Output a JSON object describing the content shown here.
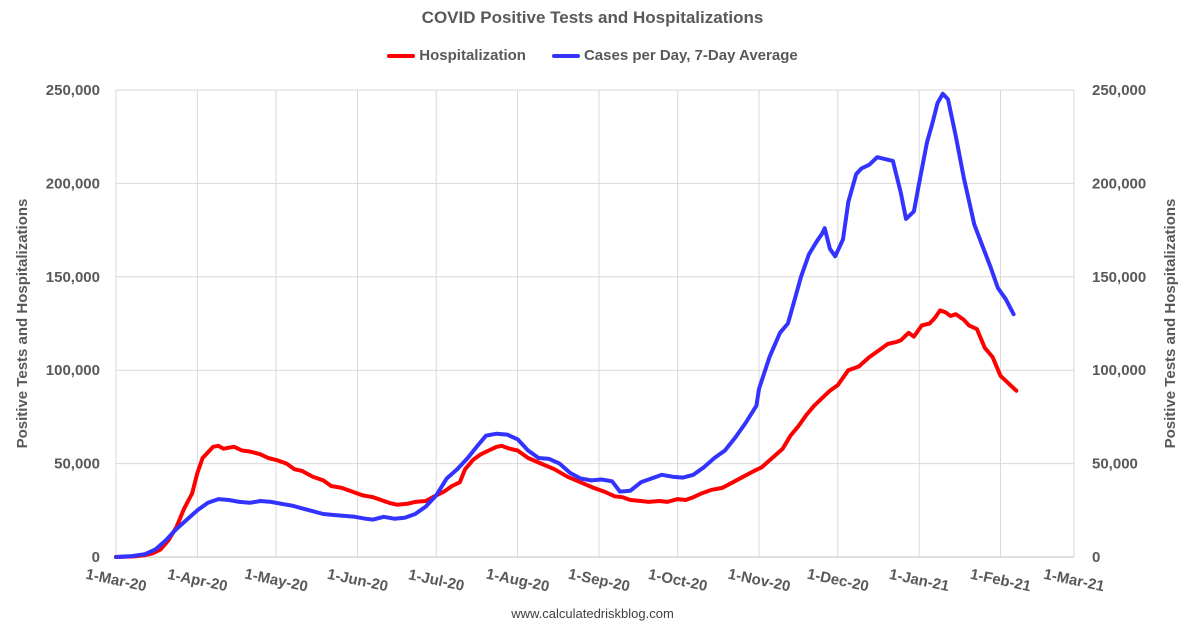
{
  "chart_data": {
    "type": "line",
    "title": "COVID Positive Tests and Hospitalizations",
    "source": "www.calculatedriskblog.com",
    "ylabel_left": "Positive Tests and Hospitalizations",
    "ylabel_right": "Positive Tests and Hospitalizations",
    "ylim": [
      0,
      250000
    ],
    "xlim": [
      "2020-03-01",
      "2021-03-01"
    ],
    "grid": true,
    "legend_position": "top",
    "y_ticks": [
      {
        "value": 0,
        "label": "0"
      },
      {
        "value": 50000,
        "label": "50,000"
      },
      {
        "value": 100000,
        "label": "100,000"
      },
      {
        "value": 150000,
        "label": "150,000"
      },
      {
        "value": 200000,
        "label": "200,000"
      },
      {
        "value": 250000,
        "label": "250,000"
      }
    ],
    "x_ticks": [
      {
        "date": "2020-03-01",
        "label": "1-Mar-20"
      },
      {
        "date": "2020-04-01",
        "label": "1-Apr-20"
      },
      {
        "date": "2020-05-01",
        "label": "1-May-20"
      },
      {
        "date": "2020-06-01",
        "label": "1-Jun-20"
      },
      {
        "date": "2020-07-01",
        "label": "1-Jul-20"
      },
      {
        "date": "2020-08-01",
        "label": "1-Aug-20"
      },
      {
        "date": "2020-09-01",
        "label": "1-Sep-20"
      },
      {
        "date": "2020-10-01",
        "label": "1-Oct-20"
      },
      {
        "date": "2020-11-01",
        "label": "1-Nov-20"
      },
      {
        "date": "2020-12-01",
        "label": "1-Dec-20"
      },
      {
        "date": "2021-01-01",
        "label": "1-Jan-21"
      },
      {
        "date": "2021-02-01",
        "label": "1-Feb-21"
      },
      {
        "date": "2021-03-01",
        "label": "1-Mar-21"
      }
    ],
    "series": [
      {
        "name": "Hospitalization",
        "color": "#ff0000",
        "points": [
          [
            "2020-03-01",
            0
          ],
          [
            "2020-03-08",
            300
          ],
          [
            "2020-03-12",
            1000
          ],
          [
            "2020-03-15",
            2000
          ],
          [
            "2020-03-18",
            4000
          ],
          [
            "2020-03-21",
            9000
          ],
          [
            "2020-03-24",
            16000
          ],
          [
            "2020-03-27",
            26000
          ],
          [
            "2020-03-30",
            34000
          ],
          [
            "2020-04-01",
            45000
          ],
          [
            "2020-04-03",
            53000
          ],
          [
            "2020-04-05",
            56000
          ],
          [
            "2020-04-07",
            59000
          ],
          [
            "2020-04-09",
            59500
          ],
          [
            "2020-04-11",
            58000
          ],
          [
            "2020-04-13",
            58500
          ],
          [
            "2020-04-15",
            59000
          ],
          [
            "2020-04-18",
            57000
          ],
          [
            "2020-04-21",
            56500
          ],
          [
            "2020-04-25",
            55000
          ],
          [
            "2020-04-28",
            53000
          ],
          [
            "2020-05-01",
            52000
          ],
          [
            "2020-05-05",
            50000
          ],
          [
            "2020-05-08",
            47000
          ],
          [
            "2020-05-11",
            46000
          ],
          [
            "2020-05-15",
            43000
          ],
          [
            "2020-05-19",
            41000
          ],
          [
            "2020-05-22",
            38000
          ],
          [
            "2020-05-26",
            37000
          ],
          [
            "2020-05-30",
            35000
          ],
          [
            "2020-06-03",
            33000
          ],
          [
            "2020-06-07",
            32000
          ],
          [
            "2020-06-10",
            30500
          ],
          [
            "2020-06-13",
            29000
          ],
          [
            "2020-06-16",
            28000
          ],
          [
            "2020-06-20",
            28500
          ],
          [
            "2020-06-23",
            29500
          ],
          [
            "2020-06-27",
            30000
          ],
          [
            "2020-07-01",
            33000
          ],
          [
            "2020-07-04",
            35000
          ],
          [
            "2020-07-07",
            38000
          ],
          [
            "2020-07-10",
            40000
          ],
          [
            "2020-07-12",
            47000
          ],
          [
            "2020-07-15",
            52000
          ],
          [
            "2020-07-18",
            55000
          ],
          [
            "2020-07-21",
            57000
          ],
          [
            "2020-07-24",
            59000
          ],
          [
            "2020-07-26",
            59500
          ],
          [
            "2020-07-29",
            58000
          ],
          [
            "2020-08-01",
            57000
          ],
          [
            "2020-08-05",
            53000
          ],
          [
            "2020-08-10",
            50000
          ],
          [
            "2020-08-15",
            47000
          ],
          [
            "2020-08-20",
            43000
          ],
          [
            "2020-08-25",
            40000
          ],
          [
            "2020-08-30",
            37000
          ],
          [
            "2020-09-03",
            35000
          ],
          [
            "2020-09-07",
            32500
          ],
          [
            "2020-09-10",
            32000
          ],
          [
            "2020-09-13",
            30500
          ],
          [
            "2020-09-17",
            30000
          ],
          [
            "2020-09-20",
            29500
          ],
          [
            "2020-09-24",
            30000
          ],
          [
            "2020-09-27",
            29500
          ],
          [
            "2020-10-01",
            31000
          ],
          [
            "2020-10-04",
            30500
          ],
          [
            "2020-10-07",
            32000
          ],
          [
            "2020-10-10",
            34000
          ],
          [
            "2020-10-14",
            36000
          ],
          [
            "2020-10-18",
            37000
          ],
          [
            "2020-10-22",
            40000
          ],
          [
            "2020-10-26",
            43000
          ],
          [
            "2020-10-30",
            46000
          ],
          [
            "2020-11-02",
            48000
          ],
          [
            "2020-11-06",
            53000
          ],
          [
            "2020-11-10",
            58000
          ],
          [
            "2020-11-13",
            65000
          ],
          [
            "2020-11-16",
            70000
          ],
          [
            "2020-11-19",
            76000
          ],
          [
            "2020-11-22",
            81000
          ],
          [
            "2020-11-25",
            85000
          ],
          [
            "2020-11-28",
            89000
          ],
          [
            "2020-12-01",
            92000
          ],
          [
            "2020-12-03",
            96000
          ],
          [
            "2020-12-05",
            100000
          ],
          [
            "2020-12-09",
            102000
          ],
          [
            "2020-12-13",
            107000
          ],
          [
            "2020-12-17",
            111000
          ],
          [
            "2020-12-20",
            114000
          ],
          [
            "2020-12-23",
            115000
          ],
          [
            "2020-12-25",
            116000
          ],
          [
            "2020-12-28",
            120000
          ],
          [
            "2020-12-30",
            118000
          ],
          [
            "2021-01-02",
            124000
          ],
          [
            "2021-01-05",
            125000
          ],
          [
            "2021-01-07",
            128000
          ],
          [
            "2021-01-09",
            132000
          ],
          [
            "2021-01-11",
            131000
          ],
          [
            "2021-01-13",
            129000
          ],
          [
            "2021-01-15",
            130000
          ],
          [
            "2021-01-18",
            127000
          ],
          [
            "2021-01-20",
            124000
          ],
          [
            "2021-01-23",
            122000
          ],
          [
            "2021-01-26",
            112000
          ],
          [
            "2021-01-29",
            107000
          ],
          [
            "2021-02-01",
            97000
          ],
          [
            "2021-02-04",
            93000
          ],
          [
            "2021-02-07",
            89000
          ]
        ]
      },
      {
        "name": "Cases per Day, 7-Day Average",
        "color": "#3333ff",
        "points": [
          [
            "2020-03-01",
            0
          ],
          [
            "2020-03-07",
            500
          ],
          [
            "2020-03-12",
            1500
          ],
          [
            "2020-03-16",
            4000
          ],
          [
            "2020-03-20",
            9000
          ],
          [
            "2020-03-24",
            15000
          ],
          [
            "2020-03-28",
            20000
          ],
          [
            "2020-04-01",
            25000
          ],
          [
            "2020-04-05",
            29000
          ],
          [
            "2020-04-09",
            31000
          ],
          [
            "2020-04-13",
            30500
          ],
          [
            "2020-04-17",
            29500
          ],
          [
            "2020-04-21",
            29000
          ],
          [
            "2020-04-25",
            30000
          ],
          [
            "2020-04-29",
            29500
          ],
          [
            "2020-05-03",
            28500
          ],
          [
            "2020-05-07",
            27500
          ],
          [
            "2020-05-11",
            26000
          ],
          [
            "2020-05-15",
            24500
          ],
          [
            "2020-05-19",
            23000
          ],
          [
            "2020-05-23",
            22500
          ],
          [
            "2020-05-27",
            22000
          ],
          [
            "2020-05-31",
            21500
          ],
          [
            "2020-06-04",
            20500
          ],
          [
            "2020-06-07",
            20000
          ],
          [
            "2020-06-11",
            21500
          ],
          [
            "2020-06-15",
            20500
          ],
          [
            "2020-06-19",
            21000
          ],
          [
            "2020-06-23",
            23000
          ],
          [
            "2020-06-27",
            27000
          ],
          [
            "2020-07-01",
            33000
          ],
          [
            "2020-07-05",
            42000
          ],
          [
            "2020-07-09",
            47000
          ],
          [
            "2020-07-13",
            53000
          ],
          [
            "2020-07-17",
            60000
          ],
          [
            "2020-07-20",
            65000
          ],
          [
            "2020-07-24",
            66000
          ],
          [
            "2020-07-28",
            65500
          ],
          [
            "2020-08-01",
            63000
          ],
          [
            "2020-08-05",
            57000
          ],
          [
            "2020-08-09",
            53000
          ],
          [
            "2020-08-13",
            52500
          ],
          [
            "2020-08-17",
            50000
          ],
          [
            "2020-08-21",
            45000
          ],
          [
            "2020-08-25",
            42000
          ],
          [
            "2020-08-29",
            41000
          ],
          [
            "2020-09-02",
            41500
          ],
          [
            "2020-09-06",
            40500
          ],
          [
            "2020-09-09",
            35000
          ],
          [
            "2020-09-13",
            35500
          ],
          [
            "2020-09-17",
            40000
          ],
          [
            "2020-09-21",
            42000
          ],
          [
            "2020-09-25",
            44000
          ],
          [
            "2020-09-29",
            43000
          ],
          [
            "2020-10-03",
            42500
          ],
          [
            "2020-10-07",
            44000
          ],
          [
            "2020-10-11",
            48000
          ],
          [
            "2020-10-15",
            53000
          ],
          [
            "2020-10-19",
            57000
          ],
          [
            "2020-10-23",
            64000
          ],
          [
            "2020-10-27",
            72000
          ],
          [
            "2020-10-31",
            81000
          ],
          [
            "2020-11-01",
            90000
          ],
          [
            "2020-11-05",
            107000
          ],
          [
            "2020-11-09",
            120000
          ],
          [
            "2020-11-12",
            125000
          ],
          [
            "2020-11-14",
            135000
          ],
          [
            "2020-11-17",
            150000
          ],
          [
            "2020-11-20",
            162000
          ],
          [
            "2020-11-23",
            169000
          ],
          [
            "2020-11-25",
            173000
          ],
          [
            "2020-11-26",
            176000
          ],
          [
            "2020-11-28",
            165000
          ],
          [
            "2020-11-30",
            161000
          ],
          [
            "2020-12-03",
            170000
          ],
          [
            "2020-12-05",
            190000
          ],
          [
            "2020-12-08",
            205000
          ],
          [
            "2020-12-10",
            208000
          ],
          [
            "2020-12-13",
            210000
          ],
          [
            "2020-12-16",
            214000
          ],
          [
            "2020-12-19",
            213000
          ],
          [
            "2020-12-22",
            212000
          ],
          [
            "2020-12-25",
            195000
          ],
          [
            "2020-12-27",
            181000
          ],
          [
            "2020-12-30",
            185000
          ],
          [
            "2021-01-01",
            200000
          ],
          [
            "2021-01-04",
            222000
          ],
          [
            "2021-01-06",
            232000
          ],
          [
            "2021-01-08",
            243000
          ],
          [
            "2021-01-10",
            248000
          ],
          [
            "2021-01-12",
            245000
          ],
          [
            "2021-01-15",
            225000
          ],
          [
            "2021-01-18",
            203000
          ],
          [
            "2021-01-22",
            178000
          ],
          [
            "2021-01-25",
            167000
          ],
          [
            "2021-01-28",
            156000
          ],
          [
            "2021-01-31",
            144000
          ],
          [
            "2021-02-03",
            138000
          ],
          [
            "2021-02-06",
            130000
          ]
        ]
      }
    ]
  }
}
